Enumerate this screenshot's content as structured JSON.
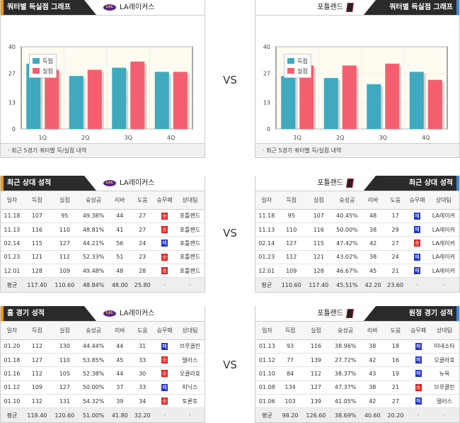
{
  "vs_label": "VS",
  "colors": {
    "score": "#3fa9bf",
    "allowed": "#f35f6f",
    "win": "#e32020",
    "loss": "#2233cc"
  },
  "chart_footer": "최근 5경기 쿼터별 득/실점 내역",
  "columns": [
    "일자",
    "득점",
    "실점",
    "슛성공",
    "리바",
    "도움",
    "승무패",
    "상대팀"
  ],
  "avg_label": "평균",
  "chart_data": [
    {
      "type": "bar",
      "title": "쿼터별 득실점 그래프",
      "team": "LA레이커스",
      "categories": [
        "1Q",
        "2Q",
        "3Q",
        "4Q"
      ],
      "yticks": [
        "0",
        "13",
        "27",
        "40"
      ],
      "ylim": [
        0,
        40
      ],
      "series": [
        {
          "name": "득점",
          "values": [
            31.8,
            25.8,
            29.8,
            27.8
          ]
        },
        {
          "name": "실점",
          "values": [
            28.8,
            28.8,
            32.8,
            27.8
          ]
        }
      ]
    },
    {
      "type": "bar",
      "title": "쿼터별 득실점 그래프",
      "team": "포틀랜드",
      "categories": [
        "1Q",
        "2Q",
        "3Q",
        "4Q"
      ],
      "yticks": [
        "0",
        "13",
        "27",
        "40"
      ],
      "ylim": [
        0,
        40
      ],
      "series": [
        {
          "name": "득점",
          "values": [
            25.8,
            24.8,
            21.8,
            27.8
          ]
        },
        {
          "name": "실점",
          "values": [
            30.9,
            30.9,
            31.8,
            23.9
          ]
        }
      ]
    }
  ],
  "tables": [
    {
      "title": "최근 상대 성적",
      "team": "LA레이커스",
      "rows": [
        [
          "11.18",
          "107",
          "95",
          "49.38%",
          "44",
          "27",
          "승",
          "포틀랜드"
        ],
        [
          "11.13",
          "116",
          "110",
          "48.81%",
          "41",
          "27",
          "승",
          "포틀랜드"
        ],
        [
          "02.14",
          "115",
          "127",
          "44.21%",
          "56",
          "24",
          "패",
          "포틀랜드"
        ],
        [
          "01.23",
          "121",
          "112",
          "52.33%",
          "51",
          "23",
          "승",
          "포틀랜드"
        ],
        [
          "12.01",
          "128",
          "109",
          "49.48%",
          "48",
          "28",
          "승",
          "포틀랜드"
        ]
      ],
      "avg": [
        "117.40",
        "110.60",
        "48.84%",
        "48.00",
        "25.80",
        "·",
        "·"
      ]
    },
    {
      "title": "최근 상대 성적",
      "team": "포틀랜드",
      "rows": [
        [
          "11.18",
          "95",
          "107",
          "40.45%",
          "48",
          "17",
          "패",
          "LA레이커"
        ],
        [
          "11.13",
          "110",
          "116",
          "50.00%",
          "38",
          "29",
          "패",
          "LA레이커"
        ],
        [
          "02.14",
          "127",
          "115",
          "47.42%",
          "42",
          "27",
          "승",
          "LA레이커"
        ],
        [
          "01.23",
          "112",
          "121",
          "43.02%",
          "38",
          "24",
          "패",
          "LA레이커"
        ],
        [
          "12.01",
          "109",
          "128",
          "46.67%",
          "45",
          "21",
          "패",
          "LA레이커"
        ]
      ],
      "avg": [
        "110.60",
        "117.40",
        "45.51%",
        "42.20",
        "23.60",
        "·",
        "·"
      ]
    },
    {
      "title": "홈 경기 성적",
      "team": "LA레이커스",
      "rows": [
        [
          "01.20",
          "112",
          "130",
          "44.44%",
          "44",
          "31",
          "패",
          "브루클린"
        ],
        [
          "01.18",
          "127",
          "110",
          "53.85%",
          "45",
          "33",
          "승",
          "댈러스"
        ],
        [
          "01.16",
          "112",
          "105",
          "52.38%",
          "44",
          "30",
          "승",
          "오클라호"
        ],
        [
          "01.12",
          "109",
          "127",
          "50.00%",
          "37",
          "33",
          "패",
          "피닉스"
        ],
        [
          "01.10",
          "132",
          "131",
          "54.32%",
          "39",
          "34",
          "승",
          "토론토"
        ]
      ],
      "avg": [
        "118.40",
        "120.60",
        "51.00%",
        "41.80",
        "32.20",
        "·",
        "·"
      ]
    },
    {
      "title": "원정 경기 성적",
      "team": "포틀랜드",
      "rows": [
        [
          "01.13",
          "93",
          "116",
          "38.96%",
          "38",
          "18",
          "패",
          "미네소타"
        ],
        [
          "01.12",
          "77",
          "139",
          "27.72%",
          "42",
          "16",
          "패",
          "오클라호"
        ],
        [
          "01.10",
          "84",
          "112",
          "38.37%",
          "43",
          "19",
          "패",
          "뉴욕"
        ],
        [
          "01.08",
          "134",
          "127",
          "47.37%",
          "38",
          "21",
          "승",
          "브루클린"
        ],
        [
          "01.06",
          "103",
          "139",
          "41.05%",
          "42",
          "27",
          "패",
          "댈러스"
        ]
      ],
      "avg": [
        "98.20",
        "126.60",
        "38.69%",
        "40.60",
        "20.20",
        "·",
        "·"
      ]
    }
  ]
}
